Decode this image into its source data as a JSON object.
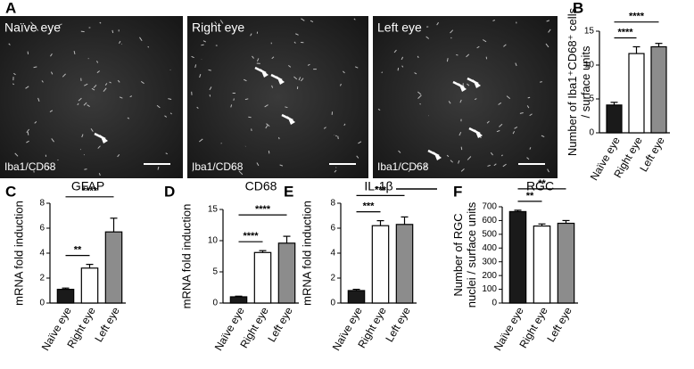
{
  "images": {
    "letter": "A",
    "panels": [
      {
        "title": "Naïve eye",
        "stain": "Iba1/CD68"
      },
      {
        "title": "Right eye",
        "stain": "Iba1/CD68"
      },
      {
        "title": "Left eye",
        "stain": "Iba1/CD68"
      }
    ]
  },
  "chart_data": [
    {
      "type": "bar",
      "letter": "B",
      "ylabel": [
        "Number of Iba1⁺CD68⁺ cells",
        "/ surface units"
      ],
      "categories": [
        "Naïve eye",
        "Right eye",
        "Left eye"
      ],
      "values": [
        4.1,
        11.7,
        12.7
      ],
      "errors": [
        0.4,
        1.0,
        0.5
      ],
      "colors": [
        "#1a1a1a",
        "#ffffff",
        "#8c8c8c"
      ],
      "ylim": [
        0,
        15
      ],
      "yticks": [
        0,
        5,
        10,
        15
      ],
      "annotations": [
        "****",
        "****"
      ]
    },
    {
      "type": "bar",
      "letter": "C",
      "title": "GFAP",
      "ylabel": [
        "mRNA fold induction"
      ],
      "categories": [
        "Naïve eye",
        "Right eye",
        "Left eye"
      ],
      "values": [
        1.1,
        2.8,
        5.7
      ],
      "errors": [
        0.1,
        0.3,
        1.1
      ],
      "colors": [
        "#1a1a1a",
        "#ffffff",
        "#8c8c8c"
      ],
      "ylim": [
        0,
        8
      ],
      "yticks": [
        0,
        2,
        4,
        6,
        8
      ],
      "annotations": [
        "**",
        "****"
      ]
    },
    {
      "type": "bar",
      "letter": "D",
      "title": "CD68",
      "ylabel": [
        "mRNA fold induction"
      ],
      "categories": [
        "Naïve eye",
        "Right eye",
        "Left eye"
      ],
      "values": [
        1.0,
        8.1,
        9.6
      ],
      "errors": [
        0.1,
        0.3,
        1.1
      ],
      "colors": [
        "#1a1a1a",
        "#ffffff",
        "#8c8c8c"
      ],
      "ylim": [
        0,
        15
      ],
      "yticks": [
        0,
        5,
        10,
        15
      ],
      "annotations": [
        "****",
        "****"
      ]
    },
    {
      "type": "bar",
      "letter": "E",
      "title": "IL-1β",
      "ylabel": [
        "mRNA fold induction"
      ],
      "categories": [
        "Naïve eye",
        "Right eye",
        "Left eye"
      ],
      "values": [
        1.0,
        6.2,
        6.3
      ],
      "errors": [
        0.1,
        0.4,
        0.6
      ],
      "colors": [
        "#1a1a1a",
        "#ffffff",
        "#8c8c8c"
      ],
      "ylim": [
        0,
        8
      ],
      "yticks": [
        0,
        2,
        4,
        6,
        8
      ],
      "annotations": [
        "***",
        "***"
      ]
    },
    {
      "type": "bar",
      "letter": "F",
      "title": "RGC",
      "ylabel": [
        "Number of RGC",
        "nuclei / surface units"
      ],
      "categories": [
        "Naïve eye",
        "Right eye",
        "Left eye"
      ],
      "values": [
        665,
        560,
        580
      ],
      "errors": [
        10,
        15,
        20
      ],
      "colors": [
        "#1a1a1a",
        "#ffffff",
        "#8c8c8c"
      ],
      "ylim": [
        0,
        700
      ],
      "yticks": [
        0,
        100,
        200,
        300,
        400,
        500,
        600,
        700
      ],
      "annotations": [
        "**",
        "**"
      ]
    }
  ]
}
